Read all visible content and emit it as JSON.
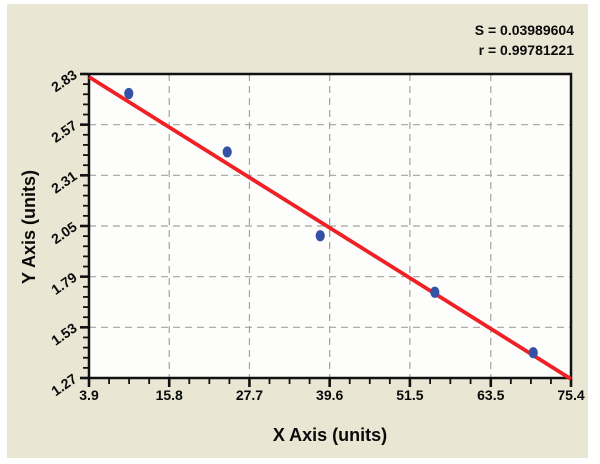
{
  "panel": {
    "background": "#e9e6d4",
    "page_background": "#ffffff"
  },
  "chart_data": {
    "type": "scatter",
    "title": "",
    "xlabel": "X Axis (units)",
    "ylabel": "Y Axis (units)",
    "annotations": [
      "S = 0.03989604",
      "r = 0.99781221"
    ],
    "xlim": [
      3.9,
      75.4
    ],
    "ylim": [
      1.27,
      2.83
    ],
    "xticks": [
      "3.9",
      "15.8",
      "27.7",
      "39.6",
      "51.5",
      "63.5",
      "75.4"
    ],
    "yticks": [
      "1.27",
      "1.53",
      "1.79",
      "2.05",
      "2.31",
      "2.57",
      "2.83"
    ],
    "x_minor_per_interval": 3,
    "y_minor_per_interval": 4,
    "grid": "dashed",
    "legend": "none",
    "points": [
      {
        "x": 9.8,
        "y": 2.73
      },
      {
        "x": 24.4,
        "y": 2.43
      },
      {
        "x": 38.2,
        "y": 2.0
      },
      {
        "x": 55.2,
        "y": 1.71
      },
      {
        "x": 69.8,
        "y": 1.4
      }
    ],
    "regression_line": {
      "x": [
        3.9,
        75.4
      ],
      "y": [
        2.815,
        1.265
      ]
    },
    "colors": {
      "point": "#3551a5",
      "line": "#ee2126",
      "grid": "#a3a3a3",
      "frame": "#111111",
      "plot_background": "#fdfdfb",
      "text": "#0a0a0a"
    }
  }
}
